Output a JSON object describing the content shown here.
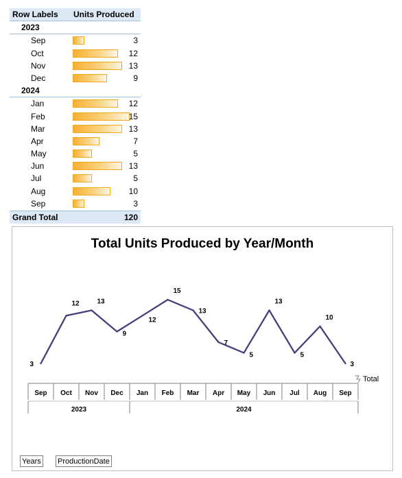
{
  "pivot": {
    "header": {
      "row_labels": "Row Labels",
      "units_produced": "Units Produced"
    },
    "groups": [
      {
        "year": "2023",
        "rows": [
          {
            "month": "Sep",
            "value": "3"
          },
          {
            "month": "Oct",
            "value": "12"
          },
          {
            "month": "Nov",
            "value": "13"
          },
          {
            "month": "Dec",
            "value": "9"
          }
        ]
      },
      {
        "year": "2024",
        "rows": [
          {
            "month": "Jan",
            "value": "12"
          },
          {
            "month": "Feb",
            "value": "15"
          },
          {
            "month": "Mar",
            "value": "13"
          },
          {
            "month": "Apr",
            "value": "7"
          },
          {
            "month": "May",
            "value": "5"
          },
          {
            "month": "Jun",
            "value": "13"
          },
          {
            "month": "Jul",
            "value": "5"
          },
          {
            "month": "Aug",
            "value": "10"
          },
          {
            "month": "Sep",
            "value": "3"
          }
        ]
      }
    ],
    "grand_total_label": "Grand Total",
    "grand_total_value": "120",
    "databar_max": 15,
    "databar_color": "#f6b032"
  },
  "chart_data": {
    "type": "line",
    "title": "Total Units Produced by Year/Month",
    "legend": [
      "Total"
    ],
    "legend_position": "right",
    "categories": [
      "Sep",
      "Oct",
      "Nov",
      "Dec",
      "Jan",
      "Feb",
      "Mar",
      "Apr",
      "May",
      "Jun",
      "Jul",
      "Aug",
      "Sep"
    ],
    "category_groups": [
      {
        "label": "2023",
        "count": 4
      },
      {
        "label": "2024",
        "count": 9
      }
    ],
    "series": [
      {
        "name": "Total",
        "values": [
          3,
          12,
          13,
          9,
          12,
          15,
          13,
          7,
          5,
          13,
          5,
          10,
          3
        ],
        "color": "#4b3b7c"
      }
    ],
    "ylim": [
      3,
      15
    ],
    "grid": false,
    "data_labels": true
  },
  "field_buttons": {
    "years": "Years",
    "production_date": "ProductionDate"
  }
}
